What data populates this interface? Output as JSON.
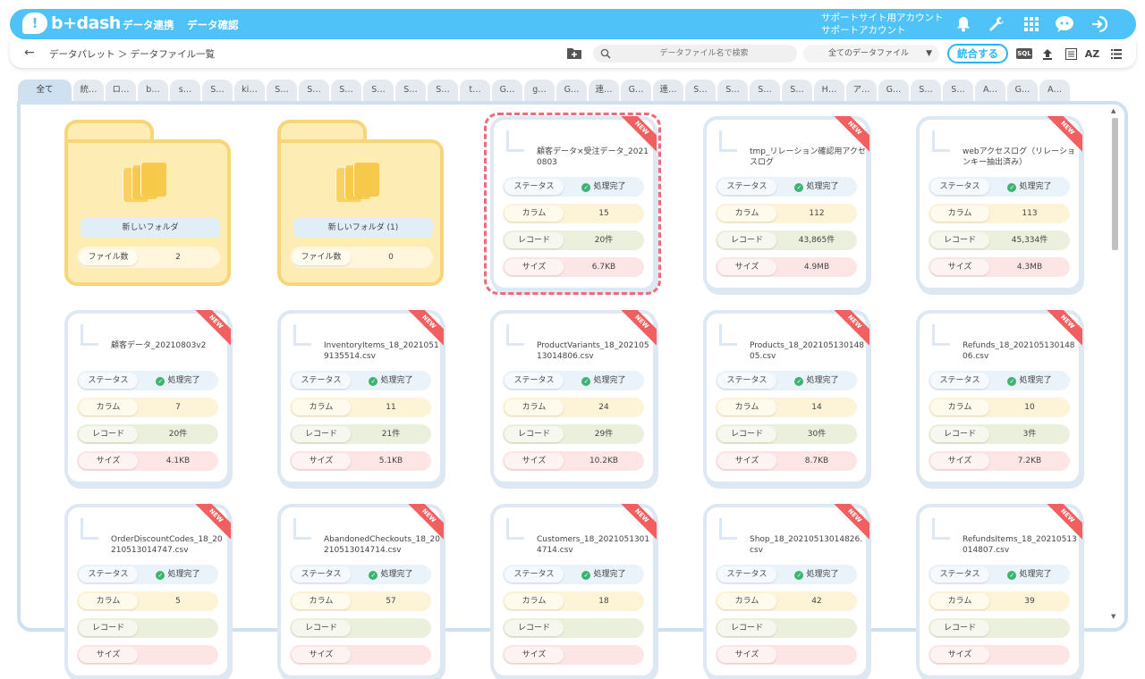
{
  "header": {
    "logo": "b+dash",
    "nav": [
      "データ連携",
      "データ確認"
    ],
    "account_line1": "サポートサイト用アカウント",
    "account_line2": "サポートアカウント"
  },
  "toolbar": {
    "breadcrumb": "データパレット ＞ データファイル一覧",
    "search_placeholder": "データファイル名で検索",
    "filter_value": "全てのデータファイル",
    "merge_label": "統合する",
    "sql_label": "SQL",
    "sort_label": "AZ"
  },
  "tabs": [
    "全て",
    "統…",
    "ロ…",
    "b…",
    "s…",
    "S…",
    "ki…",
    "S…",
    "S…",
    "S…",
    "S…",
    "S…",
    "S…",
    "t…",
    "G…",
    "g…",
    "G…",
    "連…",
    "G…",
    "連…",
    "S…",
    "S…",
    "S…",
    "S…",
    "H…",
    "ア…",
    "G…",
    "S…",
    "S…",
    "A…",
    "G…",
    "A…"
  ],
  "labels": {
    "status": "ステータス",
    "columns": "カラム",
    "records": "レコード",
    "size": "サイズ",
    "file_count": "ファイル数",
    "new": "NEW"
  },
  "folders": [
    {
      "name": "新しいフォルダ",
      "count": "2"
    },
    {
      "name": "新しいフォルダ (1)",
      "count": "0"
    }
  ],
  "cards": [
    {
      "title": "顧客データ×受注データ_20210803",
      "status": "処理完了",
      "columns": "15",
      "records": "20件",
      "size": "6.7KB"
    },
    {
      "title": "tmp_リレーション確認用アクセスログ",
      "status": "処理完了",
      "columns": "112",
      "records": "43,865件",
      "size": "4.9MB"
    },
    {
      "title": "webアクセスログ（リレーションキー抽出済み）",
      "status": "処理完了",
      "columns": "113",
      "records": "45,334件",
      "size": "4.3MB"
    },
    {
      "title": "顧客データ_20210803v2",
      "status": "処理完了",
      "columns": "7",
      "records": "20件",
      "size": "4.1KB"
    },
    {
      "title": "InventoryItems_18_20210519135514.csv",
      "status": "処理完了",
      "columns": "11",
      "records": "21件",
      "size": "5.1KB"
    },
    {
      "title": "ProductVariants_18_20210513014806.csv",
      "status": "処理完了",
      "columns": "24",
      "records": "29件",
      "size": "10.2KB"
    },
    {
      "title": "Products_18_20210513014805.csv",
      "status": "処理完了",
      "columns": "14",
      "records": "30件",
      "size": "8.7KB"
    },
    {
      "title": "Refunds_18_20210513014806.csv",
      "status": "処理完了",
      "columns": "10",
      "records": "3件",
      "size": "7.2KB"
    },
    {
      "title": "OrderDiscountCodes_18_20210513014747.csv",
      "status": "処理完了",
      "columns": "5",
      "records": "",
      "size": ""
    },
    {
      "title": "AbandonedCheckouts_18_20210513014714.csv",
      "status": "処理完了",
      "columns": "57",
      "records": "",
      "size": ""
    },
    {
      "title": "Customers_18_20210513014714.csv",
      "status": "処理完了",
      "columns": "18",
      "records": "",
      "size": ""
    },
    {
      "title": "Shop_18_20210513014826.csv",
      "status": "処理完了",
      "columns": "42",
      "records": "",
      "size": ""
    },
    {
      "title": "RefundsItems_18_20210513014807.csv",
      "status": "処理完了",
      "columns": "39",
      "records": "",
      "size": ""
    }
  ]
}
